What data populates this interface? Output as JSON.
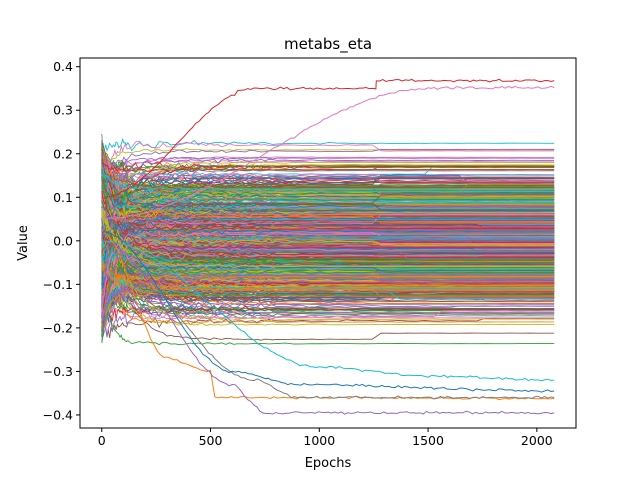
{
  "chart_data": {
    "type": "line",
    "title": "metabs_eta",
    "xlabel": "Epochs",
    "ylabel": "Value",
    "xlim": [
      -100,
      2180
    ],
    "ylim": [
      -0.43,
      0.42
    ],
    "x_ticks": [
      0,
      500,
      1000,
      1500,
      2000
    ],
    "x_tick_labels": [
      "0",
      "500",
      "1000",
      "1500",
      "2000"
    ],
    "y_ticks": [
      -0.4,
      -0.3,
      -0.2,
      -0.1,
      0.0,
      0.1,
      0.2,
      0.3,
      0.4
    ],
    "y_tick_labels": [
      "−0.4",
      "−0.3",
      "−0.2",
      "−0.1",
      "0.0",
      "0.1",
      "0.2",
      "0.3",
      "0.4"
    ],
    "epochs_range": [
      0,
      2080
    ],
    "n_series_approx": 800,
    "initial_value_range": [
      -0.22,
      0.23
    ],
    "final_value_range": [
      -0.395,
      0.37
    ],
    "regime_shift_epoch": 1260,
    "palette": [
      "#1f77b4",
      "#ff7f0e",
      "#2ca02c",
      "#d62728",
      "#9467bd",
      "#8c564b",
      "#e377c2",
      "#7f7f7f",
      "#bcbd22",
      "#17becf"
    ],
    "notable_series": [
      {
        "values_at": [
          [
            0,
            0.02
          ],
          [
            300,
            -0.27
          ],
          [
            500,
            -0.3
          ],
          [
            520,
            -0.36
          ],
          [
            2080,
            -0.362
          ]
        ]
      },
      {
        "values_at": [
          [
            0,
            0.0
          ],
          [
            600,
            -0.33
          ],
          [
            700,
            -0.375
          ],
          [
            740,
            -0.395
          ],
          [
            2080,
            -0.395
          ]
        ]
      },
      {
        "values_at": [
          [
            0,
            -0.02
          ],
          [
            700,
            -0.32
          ],
          [
            900,
            -0.36
          ],
          [
            2080,
            -0.36
          ]
        ]
      },
      {
        "values_at": [
          [
            0,
            0.02
          ],
          [
            600,
            -0.3
          ],
          [
            900,
            -0.33
          ],
          [
            2080,
            -0.345
          ]
        ]
      },
      {
        "values_at": [
          [
            0,
            0.1
          ],
          [
            700,
            0.35
          ],
          [
            1260,
            0.35
          ],
          [
            1262,
            0.368
          ],
          [
            2080,
            0.368
          ]
        ]
      },
      {
        "values_at": [
          [
            0,
            0.05
          ],
          [
            1500,
            0.35
          ],
          [
            1600,
            0.352
          ],
          [
            2080,
            0.352
          ]
        ]
      },
      {
        "values_at": [
          [
            0,
            0.0
          ],
          [
            1000,
            -0.29
          ],
          [
            1500,
            -0.31
          ],
          [
            2080,
            -0.32
          ]
        ]
      }
    ]
  }
}
